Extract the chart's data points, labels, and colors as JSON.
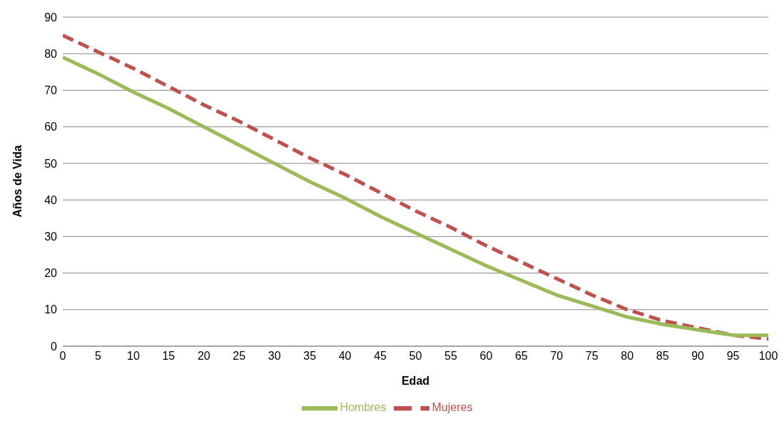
{
  "chart_data": {
    "type": "line",
    "xlabel": "Edad",
    "ylabel": "Años de Vida",
    "x": [
      0,
      5,
      10,
      15,
      20,
      25,
      30,
      35,
      40,
      45,
      50,
      55,
      60,
      65,
      70,
      75,
      80,
      85,
      90,
      95,
      100
    ],
    "series": [
      {
        "name": "Mujeres",
        "color": "#c0504d",
        "line_style": "dashed",
        "values": [
          85,
          80.5,
          76,
          71,
          66,
          61.5,
          56.5,
          51.5,
          47,
          42,
          37,
          32.5,
          27.5,
          23,
          18.5,
          14,
          10,
          7,
          5,
          3,
          2
        ]
      },
      {
        "name": "Hombres",
        "color": "#9bbb59",
        "line_style": "solid",
        "values": [
          79,
          74.5,
          69.5,
          65,
          60,
          55,
          50,
          45,
          40.5,
          35.5,
          31,
          26.5,
          22,
          18,
          14,
          11,
          8,
          6,
          4.5,
          3,
          3
        ]
      }
    ],
    "xlim": [
      0,
      100
    ],
    "xticks": [
      0,
      5,
      10,
      15,
      20,
      25,
      30,
      35,
      40,
      45,
      50,
      55,
      60,
      65,
      70,
      75,
      80,
      85,
      90,
      95,
      100
    ],
    "ylim": [
      0,
      90
    ],
    "yticks": [
      0,
      10,
      20,
      30,
      40,
      50,
      60,
      70,
      80,
      90
    ],
    "grid": "y",
    "legend": "bottom",
    "marker": "none"
  }
}
